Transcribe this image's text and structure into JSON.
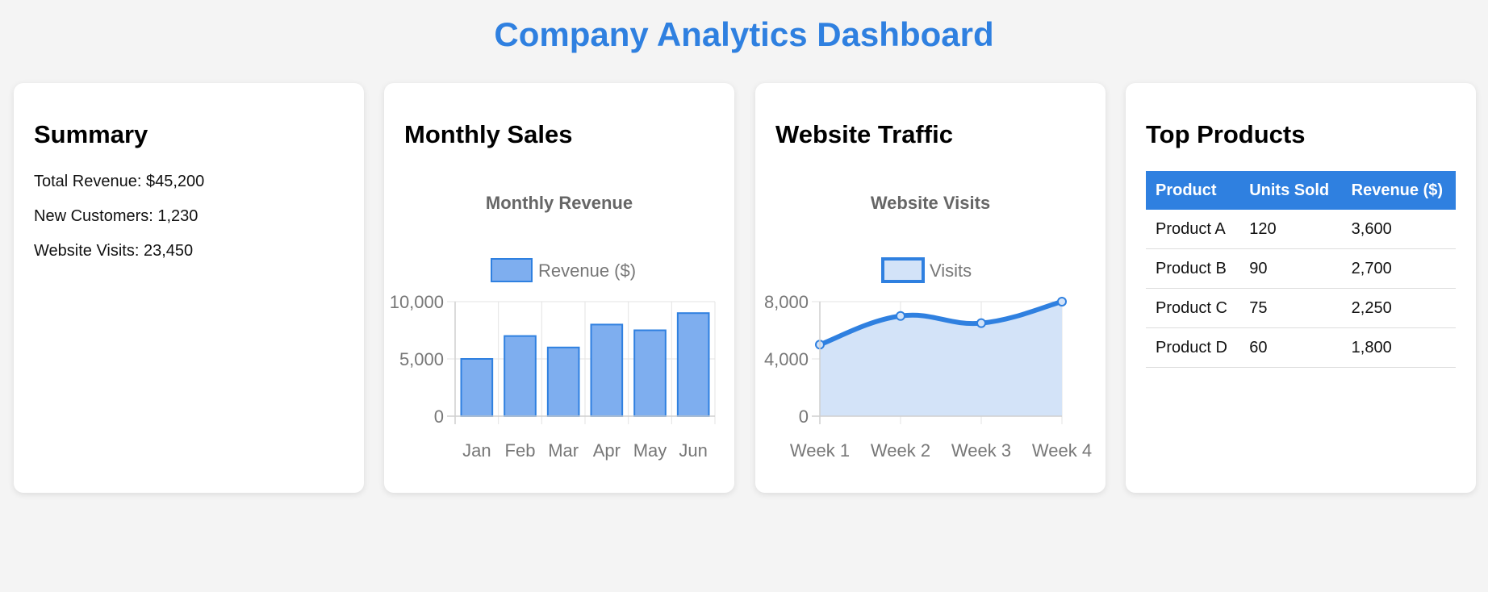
{
  "page": {
    "title": "Company Analytics Dashboard"
  },
  "summary": {
    "heading": "Summary",
    "lines": [
      "Total Revenue: $45,200",
      "New Customers: 1,230",
      "Website Visits: 23,450"
    ]
  },
  "sales": {
    "heading": "Monthly Sales"
  },
  "traffic": {
    "heading": "Website Traffic"
  },
  "products": {
    "heading": "Top Products",
    "columns": [
      "Product",
      "Units Sold",
      "Revenue ($)"
    ],
    "rows": [
      [
        "Product A",
        "120",
        "3,600"
      ],
      [
        "Product B",
        "90",
        "2,700"
      ],
      [
        "Product C",
        "75",
        "2,250"
      ],
      [
        "Product D",
        "60",
        "1,800"
      ]
    ]
  },
  "colors": {
    "accent": "#2f80e0",
    "bar_fill": "#7eaeef",
    "area_fill": "#d3e3f8"
  },
  "chart_data": [
    {
      "type": "bar",
      "title": "Monthly Revenue",
      "categories": [
        "Jan",
        "Feb",
        "Mar",
        "Apr",
        "May",
        "Jun"
      ],
      "series": [
        {
          "name": "Revenue ($)",
          "values": [
            5000,
            7000,
            6000,
            8000,
            7500,
            9000
          ]
        }
      ],
      "ylim": [
        0,
        10000
      ],
      "yticks": [
        "0",
        "5,000",
        "10,000"
      ],
      "ytick_values": [
        0,
        5000,
        10000
      ],
      "grid": true,
      "legend": "top"
    },
    {
      "type": "line",
      "title": "Website Visits",
      "categories": [
        "Week 1",
        "Week 2",
        "Week 3",
        "Week 4"
      ],
      "series": [
        {
          "name": "Visits",
          "values": [
            5000,
            7000,
            6500,
            8000
          ]
        }
      ],
      "ylim": [
        0,
        8000
      ],
      "yticks": [
        "0",
        "4,000",
        "8,000"
      ],
      "ytick_values": [
        0,
        4000,
        8000
      ],
      "grid": true,
      "legend": "top",
      "fill": true
    }
  ]
}
